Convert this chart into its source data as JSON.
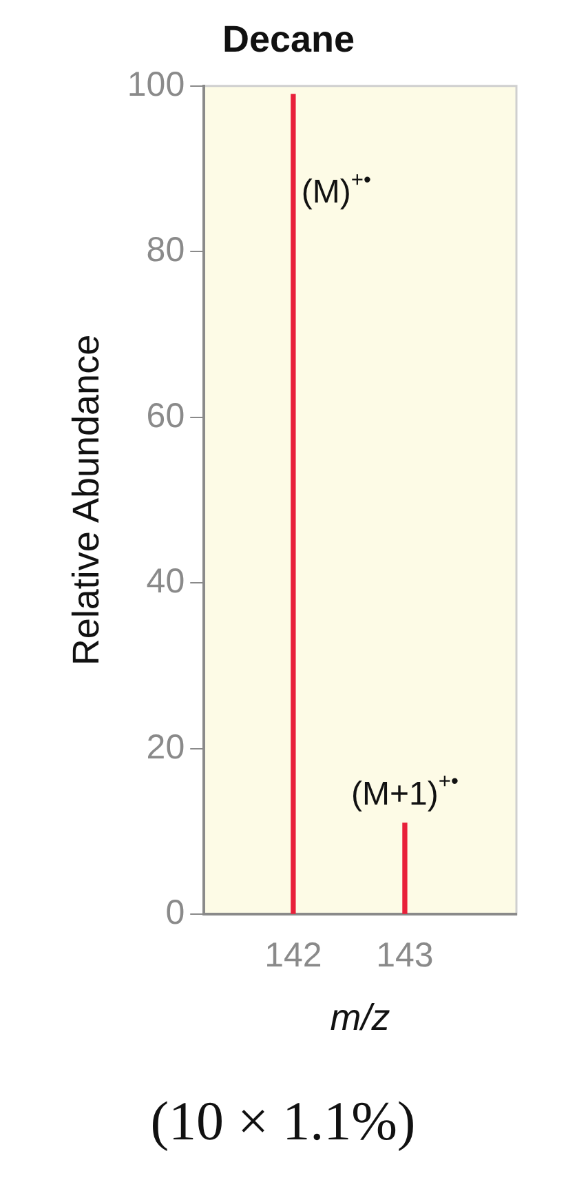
{
  "chart_data": {
    "type": "bar",
    "title": "Decane",
    "xlabel": "m/z",
    "ylabel": "Relative Abundance",
    "x": [
      142,
      143
    ],
    "values": [
      99,
      11
    ],
    "color": "#e8203a",
    "xlim": [
      141.2,
      144.0
    ],
    "xticks": [
      142,
      143
    ],
    "ylim": [
      0,
      100
    ],
    "yticks": [
      0,
      20,
      40,
      60,
      80,
      100
    ],
    "grid": false,
    "legend": false,
    "annotations": [
      {
        "text": "(M)$^{+•}$",
        "x": 142,
        "y": 87
      },
      {
        "text": "(M+1)$^{+•}$",
        "x": 143,
        "y": 11
      },
      "(10 × 1.1%)"
    ]
  }
}
